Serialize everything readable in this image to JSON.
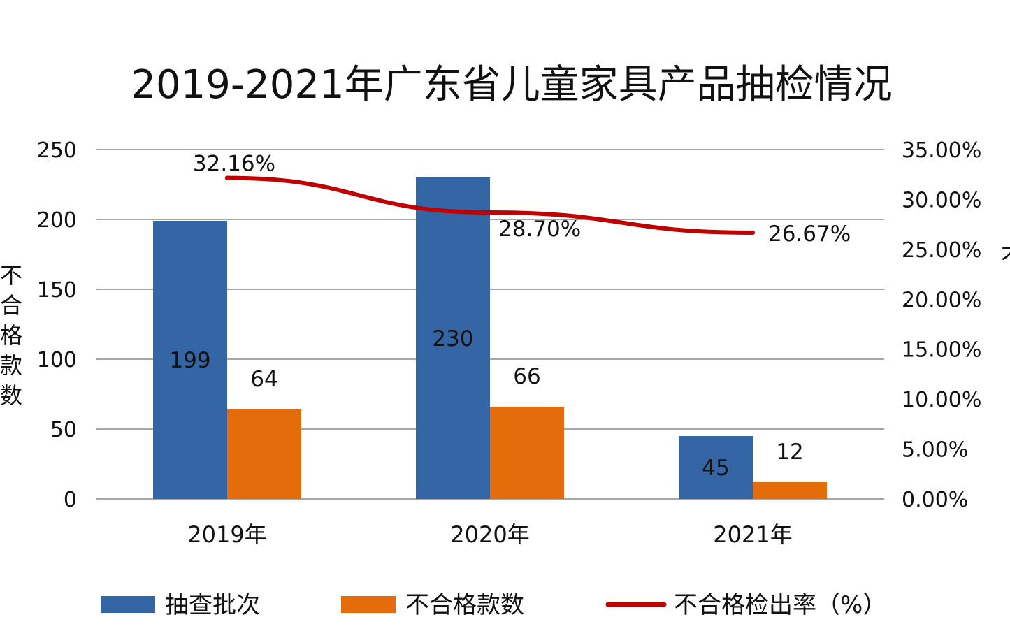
{
  "chart_data": {
    "type": "bar",
    "title": "2019-2021年广东省儿童家具产品抽检情况",
    "ylabel": "不合格款数",
    "y2label": "不",
    "categories": [
      "2019年",
      "2020年",
      "2021年"
    ],
    "ylim": [
      0,
      250
    ],
    "yticks": [
      "0",
      "50",
      "100",
      "150",
      "200",
      "250"
    ],
    "y2lim": [
      0,
      35
    ],
    "y2ticks": [
      "0.00%",
      "5.00%",
      "10.00%",
      "15.00%",
      "20.00%",
      "25.00%",
      "30.00%",
      "35.00%"
    ],
    "grid": true,
    "legend_position": "bottom",
    "series": [
      {
        "name": "抽查批次",
        "type": "bar",
        "axis": "left",
        "color": "#3465a4",
        "values": [
          199,
          230,
          45
        ],
        "labels": [
          "199",
          "230",
          "45"
        ]
      },
      {
        "name": "不合格款数",
        "type": "bar",
        "axis": "left",
        "color": "#e46c0a",
        "values": [
          64,
          66,
          12
        ],
        "labels": [
          "64",
          "66",
          "12"
        ]
      },
      {
        "name": "不合格检出率（%）",
        "type": "line",
        "axis": "right",
        "color": "#c00000",
        "values": [
          32.16,
          28.7,
          26.67
        ],
        "labels": [
          "32.16%",
          "28.70%",
          "26.67%"
        ]
      }
    ]
  }
}
